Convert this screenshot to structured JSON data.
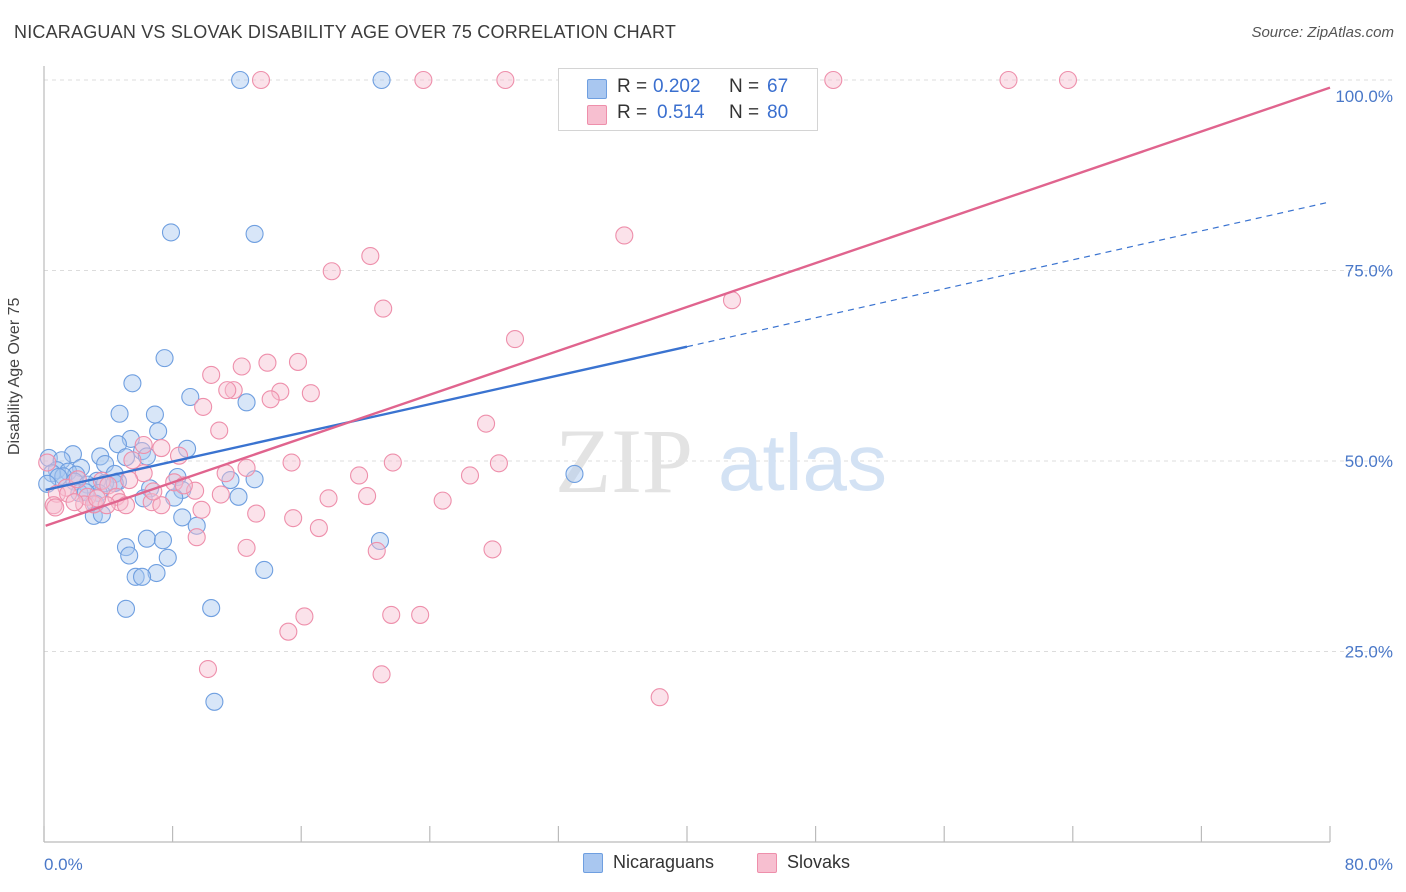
{
  "title": "NICARAGUAN VS SLOVAK DISABILITY AGE OVER 75 CORRELATION CHART",
  "source": "Source: ZipAtlas.com",
  "watermark": {
    "zip": "ZIP",
    "atlas": "atlas"
  },
  "legend": {
    "rows": [
      {
        "r_label": "R = ",
        "r_value": "0.202",
        "n_label": "N = ",
        "n_value": "67"
      },
      {
        "r_label": "R = ",
        "r_value": "0.514",
        "n_label": "N = ",
        "n_value": "80"
      }
    ]
  },
  "chart_data": {
    "type": "scatter",
    "title": "NICARAGUAN VS SLOVAK DISABILITY AGE OVER 75 CORRELATION CHART",
    "xlabel": "",
    "ylabel": "Disability Age Over 75",
    "xlim": [
      0,
      80
    ],
    "ylim": [
      0,
      102
    ],
    "x_tick_labels": [
      "0.0%",
      "80.0%"
    ],
    "y_ticks": [
      25,
      50,
      75,
      100
    ],
    "y_tick_labels": [
      "25.0%",
      "50.0%",
      "75.0%",
      "100.0%"
    ],
    "grid": true,
    "legend_position": "top-center",
    "series": [
      {
        "name": "Nicaraguans",
        "color": "#6f9fe0",
        "fill": "#a9c7f0",
        "line_color": "#3a73d0",
        "r": 0.202,
        "n": 67,
        "trend": {
          "x0": 0.1,
          "y0": 46.2,
          "x1": 40,
          "y1": 65.0,
          "dash_x1": 80,
          "dash_y1": 84.0
        },
        "points": [
          [
            12.2,
            100
          ],
          [
            21.0,
            100
          ],
          [
            7.9,
            80.0
          ],
          [
            13.1,
            79.8
          ],
          [
            7.5,
            63.5
          ],
          [
            5.5,
            60.2
          ],
          [
            9.1,
            58.4
          ],
          [
            12.6,
            57.7
          ],
          [
            4.7,
            56.2
          ],
          [
            6.9,
            56.1
          ],
          [
            7.1,
            53.9
          ],
          [
            5.4,
            52.9
          ],
          [
            4.6,
            52.2
          ],
          [
            8.9,
            51.6
          ],
          [
            6.1,
            51.3
          ],
          [
            6.4,
            50.6
          ],
          [
            1.8,
            50.9
          ],
          [
            3.5,
            50.6
          ],
          [
            5.1,
            50.5
          ],
          [
            0.3,
            50.4
          ],
          [
            1.1,
            50.1
          ],
          [
            3.8,
            49.6
          ],
          [
            2.3,
            49.1
          ],
          [
            0.8,
            48.8
          ],
          [
            1.5,
            48.6
          ],
          [
            0.5,
            48.4
          ],
          [
            4.4,
            48.3
          ],
          [
            2.0,
            48.2
          ],
          [
            1.2,
            48.0
          ],
          [
            0.9,
            47.9
          ],
          [
            8.3,
            47.9
          ],
          [
            13.1,
            47.6
          ],
          [
            11.6,
            47.5
          ],
          [
            3.3,
            47.4
          ],
          [
            1.9,
            47.3
          ],
          [
            4.6,
            47.3
          ],
          [
            3.8,
            47.1
          ],
          [
            0.2,
            47.0
          ],
          [
            2.7,
            46.9
          ],
          [
            6.6,
            46.4
          ],
          [
            8.6,
            46.2
          ],
          [
            2.2,
            45.8
          ],
          [
            3.4,
            45.8
          ],
          [
            8.1,
            45.2
          ],
          [
            12.1,
            45.3
          ],
          [
            6.2,
            45.1
          ],
          [
            3.2,
            44.4
          ],
          [
            3.1,
            42.8
          ],
          [
            8.6,
            42.6
          ],
          [
            3.6,
            43.0
          ],
          [
            9.5,
            41.5
          ],
          [
            6.4,
            39.8
          ],
          [
            7.4,
            39.6
          ],
          [
            20.9,
            39.5
          ],
          [
            5.1,
            38.7
          ],
          [
            5.3,
            37.6
          ],
          [
            7.7,
            37.3
          ],
          [
            13.7,
            35.7
          ],
          [
            7.0,
            35.3
          ],
          [
            5.7,
            34.8
          ],
          [
            6.1,
            34.8
          ],
          [
            5.1,
            30.6
          ],
          [
            10.4,
            30.7
          ],
          [
            10.6,
            18.4
          ],
          [
            33.0,
            48.3
          ],
          [
            4.4,
            47.1
          ],
          [
            2.6,
            45.9
          ]
        ]
      },
      {
        "name": "Slovaks",
        "color": "#ee8fab",
        "fill": "#f7bfd0",
        "line_color": "#e0648e",
        "r": 0.514,
        "n": 80,
        "trend": {
          "x0": 0.1,
          "y0": 41.5,
          "x1": 80,
          "y1": 99.0
        },
        "points": [
          [
            13.5,
            100
          ],
          [
            23.6,
            100
          ],
          [
            28.7,
            100
          ],
          [
            49.1,
            100
          ],
          [
            60.0,
            100
          ],
          [
            63.7,
            100
          ],
          [
            36.1,
            79.6
          ],
          [
            20.3,
            76.9
          ],
          [
            17.9,
            74.9
          ],
          [
            42.8,
            71.1
          ],
          [
            21.1,
            70.0
          ],
          [
            29.3,
            66.0
          ],
          [
            13.9,
            62.9
          ],
          [
            15.8,
            63.0
          ],
          [
            12.3,
            62.4
          ],
          [
            10.4,
            61.3
          ],
          [
            11.8,
            59.3
          ],
          [
            11.4,
            59.3
          ],
          [
            14.7,
            59.1
          ],
          [
            16.6,
            58.9
          ],
          [
            14.1,
            58.1
          ],
          [
            9.9,
            57.1
          ],
          [
            10.9,
            54.0
          ],
          [
            27.5,
            54.9
          ],
          [
            7.3,
            51.7
          ],
          [
            8.4,
            50.7
          ],
          [
            5.5,
            50.1
          ],
          [
            15.4,
            49.8
          ],
          [
            21.7,
            49.8
          ],
          [
            28.3,
            49.7
          ],
          [
            12.6,
            49.1
          ],
          [
            6.2,
            48.4
          ],
          [
            26.5,
            48.1
          ],
          [
            19.6,
            48.1
          ],
          [
            5.3,
            47.5
          ],
          [
            3.6,
            47.4
          ],
          [
            8.1,
            47.2
          ],
          [
            4.0,
            46.8
          ],
          [
            1.4,
            46.5
          ],
          [
            9.4,
            46.1
          ],
          [
            0.8,
            45.7
          ],
          [
            1.5,
            45.7
          ],
          [
            2.7,
            45.3
          ],
          [
            4.5,
            45.3
          ],
          [
            11.0,
            45.6
          ],
          [
            17.7,
            45.1
          ],
          [
            20.1,
            45.4
          ],
          [
            24.8,
            44.8
          ],
          [
            6.7,
            44.6
          ],
          [
            3.1,
            44.3
          ],
          [
            4.7,
            44.6
          ],
          [
            0.6,
            44.2
          ],
          [
            2.5,
            44.3
          ],
          [
            5.1,
            44.2
          ],
          [
            3.9,
            44.2
          ],
          [
            0.7,
            43.9
          ],
          [
            7.3,
            44.2
          ],
          [
            9.8,
            43.6
          ],
          [
            13.2,
            43.1
          ],
          [
            15.5,
            42.5
          ],
          [
            17.1,
            41.2
          ],
          [
            9.5,
            40.0
          ],
          [
            12.6,
            38.6
          ],
          [
            20.7,
            38.2
          ],
          [
            27.9,
            38.4
          ],
          [
            16.2,
            29.6
          ],
          [
            21.6,
            29.8
          ],
          [
            23.4,
            29.8
          ],
          [
            15.2,
            27.6
          ],
          [
            10.2,
            22.7
          ],
          [
            21.0,
            22.0
          ],
          [
            38.3,
            19.0
          ],
          [
            0.2,
            49.8
          ],
          [
            2.1,
            47.6
          ],
          [
            6.8,
            46.0
          ],
          [
            1.9,
            44.6
          ],
          [
            3.3,
            45.1
          ],
          [
            8.7,
            46.8
          ],
          [
            11.3,
            48.4
          ],
          [
            6.2,
            52.1
          ]
        ]
      }
    ]
  }
}
